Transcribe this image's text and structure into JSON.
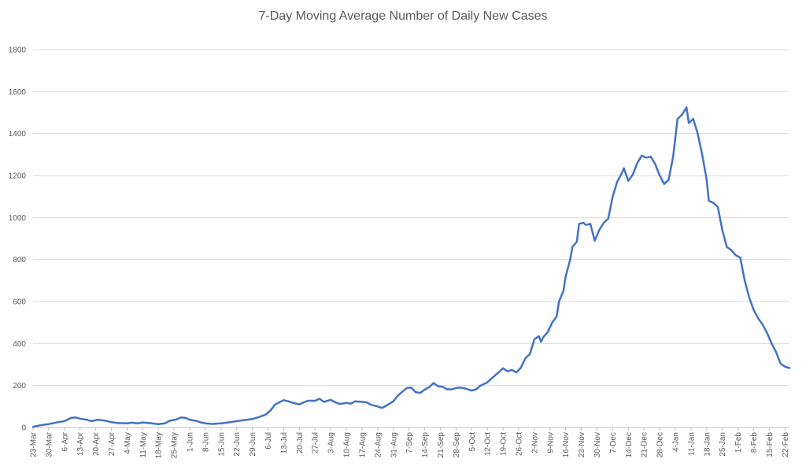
{
  "chart_data": {
    "type": "line",
    "title": "7-Day Moving Average Number of Daily New Cases",
    "xlabel": "",
    "ylabel": "",
    "ylim": [
      0,
      1800
    ],
    "yticks": [
      0,
      200,
      400,
      600,
      800,
      1000,
      1200,
      1400,
      1600,
      1800
    ],
    "grid": true,
    "legend": "none",
    "line_color": "#4472C4",
    "gridline_color": "#D9D9D9",
    "x_start": "23-Mar",
    "x_end": "24-Feb",
    "x_tick_step_days": 7,
    "x_tick_labels": [
      "23-Mar",
      "30-Mar",
      "6-Apr",
      "13-Apr",
      "20-Apr",
      "27-Apr",
      "4-May",
      "11-May",
      "18-May",
      "25-May",
      "1-Jun",
      "8-Jun",
      "15-Jun",
      "22-Jun",
      "29-Jun",
      "6-Jul",
      "13-Jul",
      "20-Jul",
      "27-Jul",
      "3-Aug",
      "10-Aug",
      "17-Aug",
      "24-Aug",
      "31-Aug",
      "7-Sep",
      "14-Sep",
      "21-Sep",
      "28-Sep",
      "5-Oct",
      "12-Oct",
      "19-Oct",
      "26-Oct",
      "2-Nov",
      "9-Nov",
      "16-Nov",
      "23-Nov",
      "30-Nov",
      "7-Dec",
      "14-Dec",
      "21-Dec",
      "28-Dec",
      "4-Jan",
      "11-Jan",
      "18-Jan",
      "25-Jan",
      "1-Feb",
      "8-Feb",
      "15-Feb",
      "22-Feb"
    ],
    "series": [
      {
        "points": [
          [
            "23-Mar",
            3
          ],
          [
            "26-Mar",
            10
          ],
          [
            "30-Mar",
            16
          ],
          [
            "3-Apr",
            25
          ],
          [
            "6-Apr",
            30
          ],
          [
            "9-Apr",
            46
          ],
          [
            "11-Apr",
            48
          ],
          [
            "13-Apr",
            42
          ],
          [
            "16-Apr",
            37
          ],
          [
            "18-Apr",
            30
          ],
          [
            "21-Apr",
            37
          ],
          [
            "24-Apr",
            33
          ],
          [
            "27-Apr",
            25
          ],
          [
            "30-Apr",
            21
          ],
          [
            "4-May",
            20
          ],
          [
            "6-May",
            23
          ],
          [
            "9-May",
            20
          ],
          [
            "11-May",
            24
          ],
          [
            "14-May",
            21
          ],
          [
            "18-May",
            16
          ],
          [
            "21-May",
            20
          ],
          [
            "23-May",
            32
          ],
          [
            "26-May",
            38
          ],
          [
            "28-May",
            48
          ],
          [
            "30-May",
            46
          ],
          [
            "1-Jun",
            37
          ],
          [
            "4-Jun",
            31
          ],
          [
            "6-Jun",
            24
          ],
          [
            "8-Jun",
            20
          ],
          [
            "11-Jun",
            17
          ],
          [
            "15-Jun",
            20
          ],
          [
            "18-Jun",
            24
          ],
          [
            "22-Jun",
            30
          ],
          [
            "25-Jun",
            35
          ],
          [
            "29-Jun",
            40
          ],
          [
            "2-Jul",
            50
          ],
          [
            "5-Jul",
            62
          ],
          [
            "7-Jul",
            80
          ],
          [
            "9-Jul",
            108
          ],
          [
            "11-Jul",
            120
          ],
          [
            "13-Jul",
            130
          ],
          [
            "15-Jul",
            125
          ],
          [
            "17-Jul",
            118
          ],
          [
            "20-Jul",
            110
          ],
          [
            "22-Jul",
            120
          ],
          [
            "24-Jul",
            128
          ],
          [
            "27-Jul",
            127
          ],
          [
            "29-Jul",
            137
          ],
          [
            "31-Jul",
            122
          ],
          [
            "3-Aug",
            132
          ],
          [
            "5-Aug",
            120
          ],
          [
            "7-Aug",
            112
          ],
          [
            "10-Aug",
            117
          ],
          [
            "12-Aug",
            114
          ],
          [
            "14-Aug",
            125
          ],
          [
            "17-Aug",
            122
          ],
          [
            "19-Aug",
            120
          ],
          [
            "21-Aug",
            108
          ],
          [
            "24-Aug",
            100
          ],
          [
            "26-Aug",
            93
          ],
          [
            "28-Aug",
            105
          ],
          [
            "31-Aug",
            125
          ],
          [
            "2-Sep",
            152
          ],
          [
            "4-Sep",
            170
          ],
          [
            "6-Sep",
            188
          ],
          [
            "8-Sep",
            190
          ],
          [
            "10-Sep",
            168
          ],
          [
            "12-Sep",
            165
          ],
          [
            "14-Sep",
            180
          ],
          [
            "16-Sep",
            192
          ],
          [
            "18-Sep",
            212
          ],
          [
            "20-Sep",
            196
          ],
          [
            "22-Sep",
            194
          ],
          [
            "24-Sep",
            182
          ],
          [
            "26-Sep",
            182
          ],
          [
            "28-Sep",
            188
          ],
          [
            "30-Sep",
            190
          ],
          [
            "2-Oct",
            186
          ],
          [
            "5-Oct",
            176
          ],
          [
            "7-Oct",
            182
          ],
          [
            "9-Oct",
            200
          ],
          [
            "12-Oct",
            215
          ],
          [
            "14-Oct",
            235
          ],
          [
            "17-Oct",
            262
          ],
          [
            "19-Oct",
            282
          ],
          [
            "21-Oct",
            268
          ],
          [
            "23-Oct",
            274
          ],
          [
            "25-Oct",
            262
          ],
          [
            "27-Oct",
            285
          ],
          [
            "29-Oct",
            330
          ],
          [
            "31-Oct",
            350
          ],
          [
            "2-Nov",
            420
          ],
          [
            "4-Nov",
            435
          ],
          [
            "5-Nov",
            408
          ],
          [
            "6-Nov",
            430
          ],
          [
            "8-Nov",
            455
          ],
          [
            "10-Nov",
            500
          ],
          [
            "12-Nov",
            530
          ],
          [
            "13-Nov",
            600
          ],
          [
            "15-Nov",
            650
          ],
          [
            "16-Nov",
            720
          ],
          [
            "18-Nov",
            800
          ],
          [
            "19-Nov",
            860
          ],
          [
            "21-Nov",
            885
          ],
          [
            "22-Nov",
            970
          ],
          [
            "24-Nov",
            975
          ],
          [
            "25-Nov",
            965
          ],
          [
            "27-Nov",
            970
          ],
          [
            "29-Nov",
            890
          ],
          [
            "1-Dec",
            940
          ],
          [
            "3-Dec",
            975
          ],
          [
            "5-Dec",
            995
          ],
          [
            "7-Dec",
            1100
          ],
          [
            "9-Dec",
            1170
          ],
          [
            "11-Dec",
            1210
          ],
          [
            "12-Dec",
            1235
          ],
          [
            "14-Dec",
            1175
          ],
          [
            "16-Dec",
            1205
          ],
          [
            "18-Dec",
            1260
          ],
          [
            "20-Dec",
            1295
          ],
          [
            "22-Dec",
            1285
          ],
          [
            "24-Dec",
            1290
          ],
          [
            "26-Dec",
            1255
          ],
          [
            "28-Dec",
            1200
          ],
          [
            "30-Dec",
            1160
          ],
          [
            "1-Jan",
            1180
          ],
          [
            "3-Jan",
            1290
          ],
          [
            "5-Jan",
            1470
          ],
          [
            "7-Jan",
            1490
          ],
          [
            "9-Jan",
            1525
          ],
          [
            "10-Jan",
            1450
          ],
          [
            "12-Jan",
            1470
          ],
          [
            "14-Jan",
            1400
          ],
          [
            "16-Jan",
            1300
          ],
          [
            "18-Jan",
            1180
          ],
          [
            "19-Jan",
            1080
          ],
          [
            "21-Jan",
            1070
          ],
          [
            "23-Jan",
            1050
          ],
          [
            "25-Jan",
            940
          ],
          [
            "27-Jan",
            860
          ],
          [
            "29-Jan",
            845
          ],
          [
            "31-Jan",
            820
          ],
          [
            "2-Feb",
            810
          ],
          [
            "4-Feb",
            700
          ],
          [
            "6-Feb",
            620
          ],
          [
            "8-Feb",
            560
          ],
          [
            "10-Feb",
            520
          ],
          [
            "12-Feb",
            490
          ],
          [
            "14-Feb",
            450
          ],
          [
            "16-Feb",
            400
          ],
          [
            "18-Feb",
            360
          ],
          [
            "20-Feb",
            305
          ],
          [
            "22-Feb",
            290
          ],
          [
            "24-Feb",
            283
          ]
        ]
      }
    ]
  }
}
